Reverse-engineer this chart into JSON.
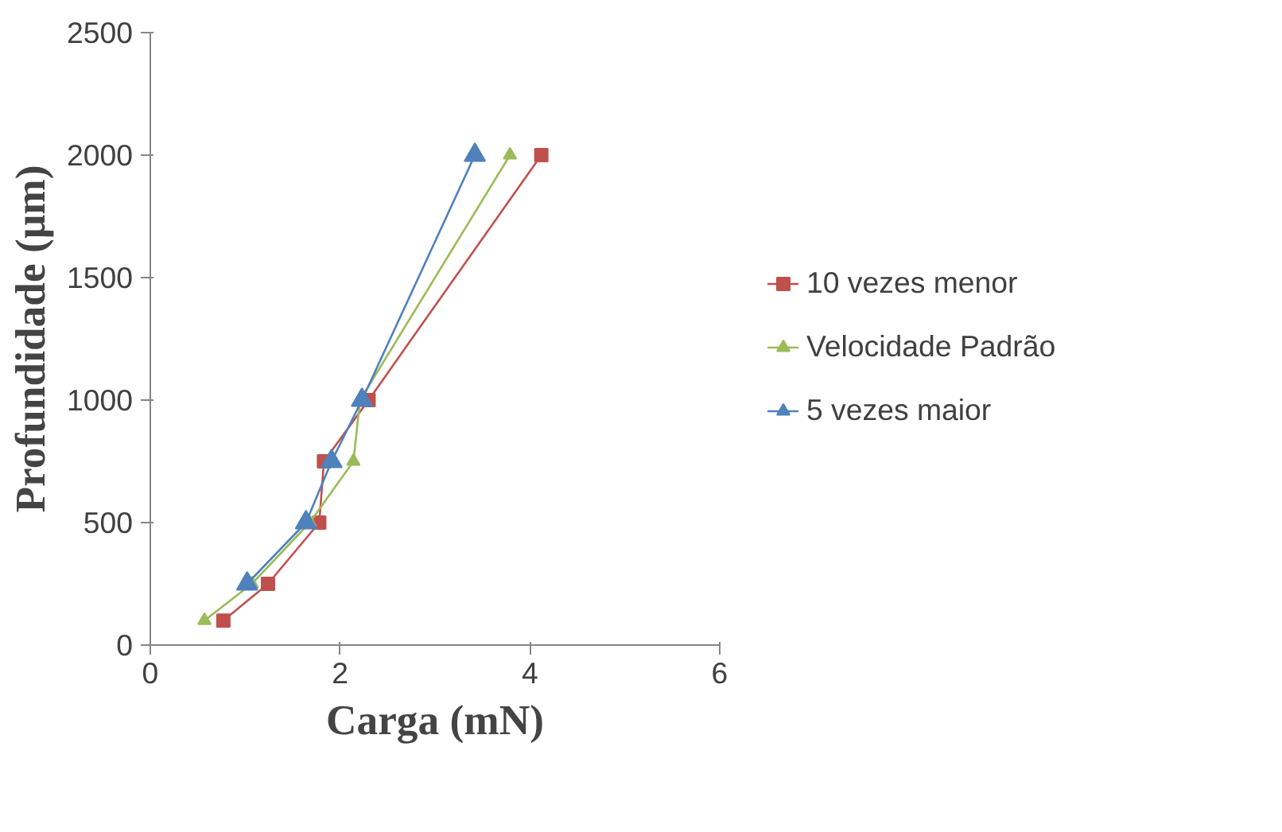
{
  "chart_data": {
    "type": "line",
    "xlabel": "Carga (mN)",
    "ylabel": "Profundidade (µm)",
    "xlim": [
      0,
      6
    ],
    "ylim": [
      0,
      2500
    ],
    "xticks": [
      0,
      2,
      4,
      6
    ],
    "yticks": [
      0,
      500,
      1000,
      1500,
      2000,
      2500
    ],
    "grid": false,
    "legend": "right",
    "series": [
      {
        "name": "10 vezes menor",
        "color": "#c0504d",
        "marker": "square",
        "x": [
          0.77,
          1.24,
          1.78,
          1.83,
          2.3,
          4.12
        ],
        "values": [
          100,
          250,
          500,
          750,
          1000,
          2000
        ]
      },
      {
        "name": "Velocidade Padrão",
        "color": "#9bbb59",
        "marker": "triangle",
        "x": [
          0.57,
          1.07,
          1.68,
          2.14,
          2.21,
          3.79
        ],
        "values": [
          100,
          250,
          500,
          750,
          1000,
          2000
        ]
      },
      {
        "name": "5 vezes maior",
        "color": "#4f81bd",
        "marker": "triangle",
        "x": [
          1.02,
          1.64,
          1.91,
          2.23,
          3.42
        ],
        "values": [
          250,
          500,
          750,
          1000,
          2000
        ]
      }
    ]
  }
}
